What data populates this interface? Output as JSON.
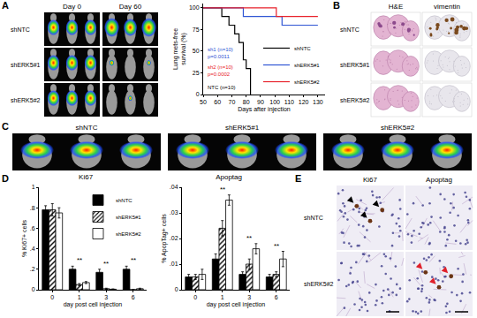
{
  "image_panels": [
    {
      "letter": "A",
      "columns": [
        "Day 0",
        "Day 60"
      ],
      "rows": [
        "shNTC",
        "shERK5#1",
        "shERK5#2"
      ]
    },
    {
      "letter": "B",
      "columns": [
        "H&E",
        "vimentin"
      ],
      "rows": [
        "shNTC",
        "shERK5#1",
        "shERK5#2"
      ]
    },
    {
      "letter": "C",
      "groups": [
        "shNTC",
        "shERK5#1",
        "shERK5#2"
      ]
    },
    {
      "letter": "E",
      "columns": [
        "Ki67",
        "Apoptag"
      ],
      "rows": [
        "shNTC",
        "shERK5#2"
      ]
    }
  ],
  "chart_data": [
    {
      "type": "line",
      "line_style": "step",
      "x_label": "Days after injection",
      "y_label": "Lung mets-free survival (%)",
      "xlim": [
        50,
        135
      ],
      "xticks": [
        50,
        60,
        70,
        80,
        90,
        100,
        110,
        120,
        130
      ],
      "ylim": [
        0,
        105
      ],
      "yticks": [
        0,
        25,
        50,
        75,
        100
      ],
      "grid": false,
      "legend": "lower right",
      "series": [
        {
          "name": "shNTC",
          "color": "#000000",
          "x": [
            50,
            63,
            68,
            72,
            75,
            78,
            80,
            83
          ],
          "values": [
            100,
            90,
            80,
            70,
            60,
            40,
            30,
            0
          ]
        },
        {
          "name": "shERK5#1",
          "color": "#2f55d4",
          "x": [
            50,
            78,
            105,
            130
          ],
          "values": [
            100,
            90,
            80,
            80
          ]
        },
        {
          "name": "shERK5#2",
          "color": "#e8202a",
          "x": [
            50,
            101,
            130
          ],
          "values": [
            100,
            90,
            90
          ]
        }
      ],
      "annotations": [
        {
          "lines": [
            "NTC (n=10)"
          ],
          "color": "#000000"
        },
        {
          "lines": [
            "sh1 (n=10)",
            "p=0.0011"
          ],
          "color": "#2f55d4"
        },
        {
          "lines": [
            "sh2 (n=10)",
            "p=0.0002"
          ],
          "color": "#e8202a"
        }
      ]
    },
    {
      "type": "bar",
      "panel": "D",
      "title": "Ki67",
      "x_label": "day post cell injection",
      "y_label": "% Ki67+ cells",
      "categories": [
        "0",
        "1",
        "3",
        "6"
      ],
      "ylim": [
        0,
        1
      ],
      "yticks": [
        0,
        {
          "value": 0.2,
          "label": ".2"
        },
        {
          "value": 0.4,
          "label": ".4"
        },
        {
          "value": 0.6,
          "label": ".6"
        },
        {
          "value": 0.8,
          "label": ".8"
        },
        1
      ],
      "grid": false,
      "legend": "upper right",
      "series": [
        {
          "name": "shNTC",
          "color": "#000000",
          "values": [
            0.78,
            0.2,
            0.17,
            0.2
          ],
          "errors": [
            0.04,
            0.03,
            0.03,
            0.03
          ]
        },
        {
          "name": "shERK5#1",
          "color": "#ffffff",
          "marker": "hatched",
          "values": [
            0.78,
            0.05,
            0.01,
            0.0
          ],
          "errors": [
            0.06,
            0.01,
            0.005,
            0.0
          ]
        },
        {
          "name": "shERK5#2",
          "color": "#ffffff",
          "values": [
            0.75,
            0.07,
            0.005,
            0.01
          ],
          "errors": [
            0.05,
            0.01,
            0.003,
            0.005
          ]
        }
      ],
      "significance": [
        {
          "category": "1",
          "text": "**"
        },
        {
          "category": "3",
          "text": "**"
        },
        {
          "category": "6",
          "text": "**"
        }
      ]
    },
    {
      "type": "bar",
      "title": "Apoptag",
      "x_label": "day post cell injection",
      "y_label": "% ApopTag+ cells",
      "categories": [
        "0",
        "1",
        "3",
        "6"
      ],
      "ylim": [
        0,
        0.04
      ],
      "yticks": [
        0,
        {
          "value": 0.01,
          "label": ".01"
        },
        {
          "value": 0.02,
          "label": ".02"
        },
        {
          "value": 0.03,
          "label": ".03"
        },
        {
          "value": 0.04,
          "label": ".04"
        }
      ],
      "grid": false,
      "series": [
        {
          "name": "shNTC",
          "color": "#000000",
          "values": [
            0.005,
            0.012,
            0.006,
            0.005
          ],
          "errors": [
            0.001,
            0.002,
            0.001,
            0.001
          ]
        },
        {
          "name": "shERK5#1",
          "color": "#ffffff",
          "marker": "hatched",
          "values": [
            0.005,
            0.024,
            0.01,
            0.006
          ],
          "errors": [
            0.001,
            0.003,
            0.002,
            0.001
          ]
        },
        {
          "name": "shERK5#2",
          "color": "#ffffff",
          "values": [
            0.006,
            0.035,
            0.016,
            0.012
          ],
          "errors": [
            0.002,
            0.002,
            0.002,
            0.003
          ]
        }
      ],
      "significance": [
        {
          "category": "1",
          "text": "**"
        },
        {
          "category": "3",
          "text": "**"
        },
        {
          "category": "6",
          "text": "**"
        }
      ]
    }
  ]
}
